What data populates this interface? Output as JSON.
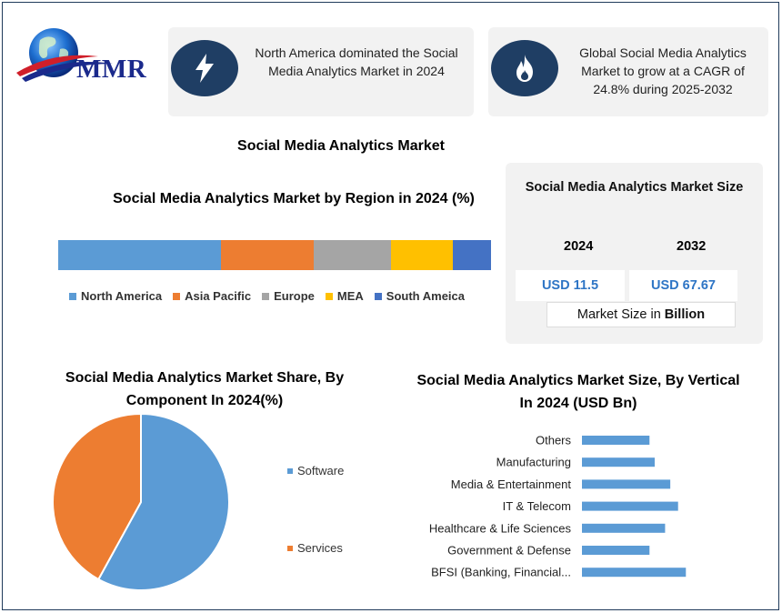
{
  "logo": {
    "text": "MMR"
  },
  "cards": [
    {
      "icon": "lightning-bolt-icon",
      "text": "North America dominated the Social Media Analytics Market in 2024"
    },
    {
      "icon": "flame-icon",
      "text": "Global Social Media Analytics Market to grow at a CAGR of 24.8% during 2025-2032"
    }
  ],
  "main_title": "Social Media Analytics Market",
  "market_size": {
    "title": "Social Media Analytics Market Size",
    "year_1": "2024",
    "year_2": "2032",
    "value_1": "USD 11.5",
    "value_2": "USD 67.67",
    "unit_prefix": "Market Size in ",
    "unit_bold": "Billion"
  },
  "colors": {
    "dark_navy": "#1f3e64",
    "value_blue": "#2e75c5",
    "card_bg": "#f2f2f2"
  },
  "chart_data": [
    {
      "type": "bar",
      "orientation": "horizontal-stacked",
      "title": "Social Media Analytics Market by Region in 2024 (%)",
      "categories": [
        "North America",
        "Asia Pacific",
        "Europe",
        "MEA",
        "South Ameica"
      ],
      "values": [
        37.6,
        21.4,
        17.9,
        14.3,
        8.8
      ],
      "colors": [
        "#5b9bd5",
        "#ed7d31",
        "#a5a5a5",
        "#ffc000",
        "#4472c4"
      ],
      "legend_position": "bottom"
    },
    {
      "type": "pie",
      "title": "Social Media Analytics Market Share, By Component In 2024(%)",
      "categories": [
        "Software",
        "Services"
      ],
      "values": [
        58,
        42
      ],
      "colors": [
        "#5b9bd5",
        "#ed7d31"
      ],
      "legend_position": "right"
    },
    {
      "type": "bar",
      "orientation": "horizontal",
      "title": "Social Media Analytics Market Size, By Vertical In 2024 (USD Bn)",
      "categories": [
        "Others",
        "Manufacturing",
        "Media & Entertainment",
        "IT & Telecom",
        "Healthcare & Life Sciences",
        "Government & Defense",
        "BFSI (Banking, Financial..."
      ],
      "values": [
        1.3,
        1.4,
        1.7,
        1.85,
        1.6,
        1.3,
        2.0
      ],
      "xlim": [
        0,
        3.5
      ],
      "color": "#5b9bd5",
      "grid": false
    }
  ]
}
